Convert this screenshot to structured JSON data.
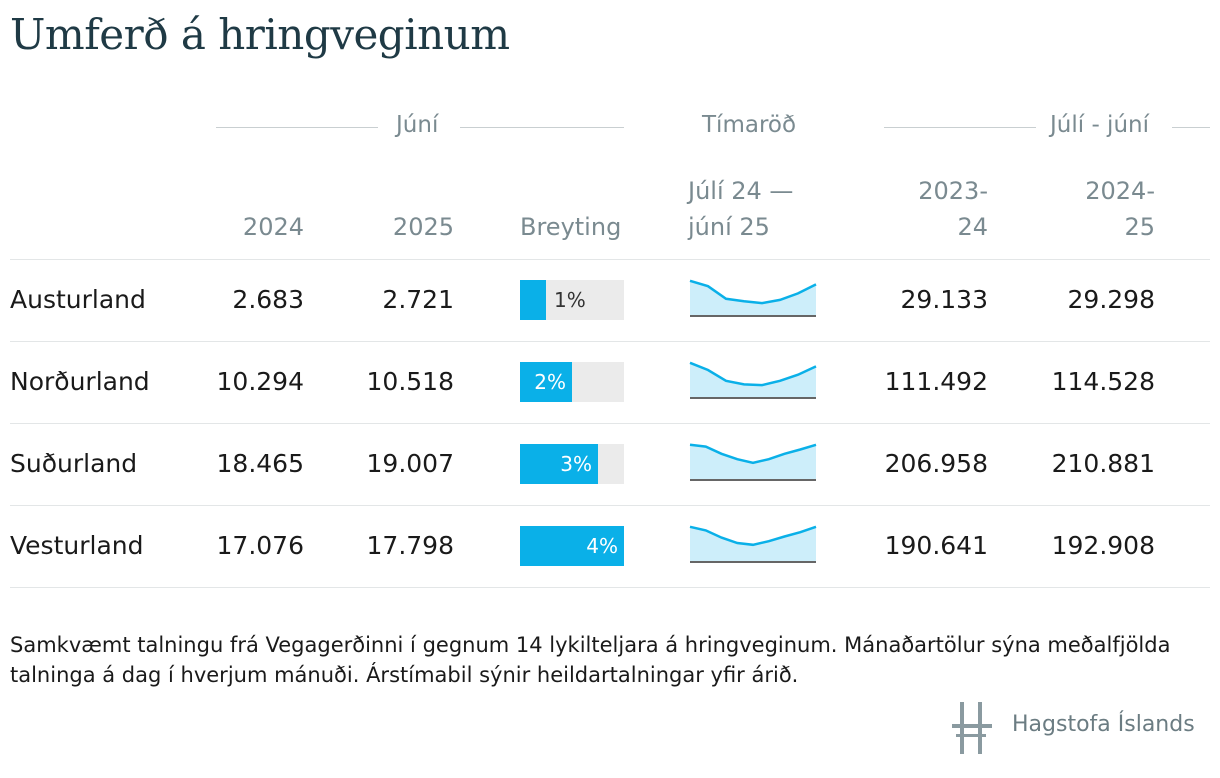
{
  "title": "Umferð á hringveginum",
  "groups": {
    "june": "Júní",
    "series": "Tímaröð",
    "year": "Júlí - júní"
  },
  "columns": {
    "y2024": "2024",
    "y2025": "2025",
    "change": "Breyting",
    "series_line1": "Júlí 24 —",
    "series_line2": "júní 25",
    "fy1_line1": "2023-",
    "fy1_line2": "24",
    "fy2_line1": "2024-",
    "fy2_line2": "25"
  },
  "colors": {
    "bar": "#0ab0e8",
    "bar_bg": "#ebebeb",
    "spark_line": "#0ab0e8",
    "spark_fill": "#cdeefa"
  },
  "chart_data": {
    "type": "table",
    "change_max_percent": 4,
    "rows": [
      {
        "region": "Austurland",
        "june_2024": "2.683",
        "june_2025": "2.721",
        "change_label": "1%",
        "change_value": 1,
        "fy_2023_24": "29.133",
        "fy_2024_25": "29.298",
        "trend": [
          0.95,
          0.8,
          0.45,
          0.38,
          0.33,
          0.42,
          0.6,
          0.85
        ]
      },
      {
        "region": "Norðurland",
        "june_2024": "10.294",
        "june_2025": "10.518",
        "change_label": "2%",
        "change_value": 2,
        "fy_2023_24": "111.492",
        "fy_2024_25": "114.528",
        "trend": [
          0.95,
          0.75,
          0.45,
          0.35,
          0.33,
          0.45,
          0.62,
          0.85
        ]
      },
      {
        "region": "Suðurland",
        "june_2024": "18.465",
        "june_2025": "19.007",
        "change_label": "3%",
        "change_value": 3,
        "fy_2023_24": "206.958",
        "fy_2024_25": "210.881",
        "trend": [
          0.95,
          0.9,
          0.7,
          0.55,
          0.45,
          0.55,
          0.7,
          0.82,
          0.95
        ]
      },
      {
        "region": "Vesturland",
        "june_2024": "17.076",
        "june_2025": "17.798",
        "change_label": "4%",
        "change_value": 4,
        "fy_2023_24": "190.641",
        "fy_2024_25": "192.908",
        "trend": [
          0.95,
          0.85,
          0.65,
          0.5,
          0.45,
          0.55,
          0.68,
          0.8,
          0.95
        ]
      }
    ]
  },
  "footnote": "Samkvæmt talningu frá Vegagerðinni í gegnum 14 lykilteljara á hringveginum. Mánaðartölur sýna meðalfjölda talninga á dag í hverjum mánuði. Árstímabil sýnir heildartalningar yfir árið.",
  "brand": {
    "name": "Hagstofa Íslands",
    "icon": "hagstofa-logo-icon"
  }
}
